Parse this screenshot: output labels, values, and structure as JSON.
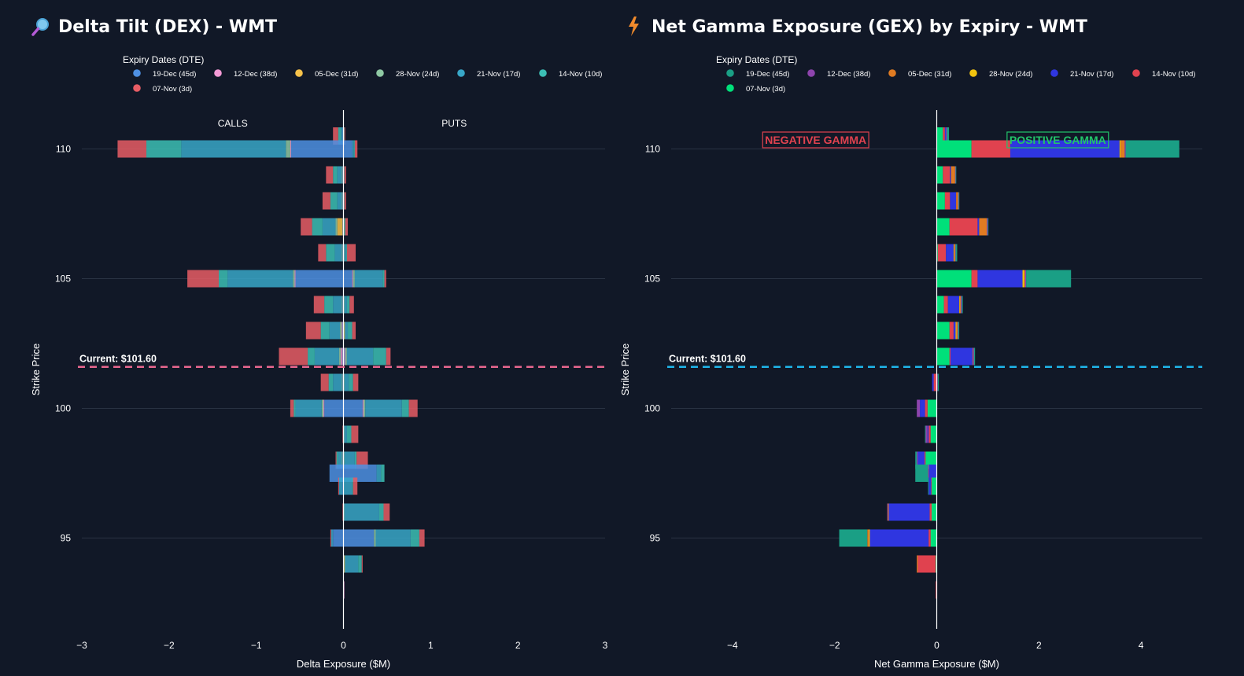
{
  "colors": {
    "background": "#111827",
    "grid": "#2a3343",
    "dex_current_line": "#e8678f",
    "gex_current_line": "#1fb6ea",
    "negative_gamma": "#e0424f",
    "positive_gamma": "#22c46a"
  },
  "charts": [
    {
      "key": "dex",
      "icon": "magnifier-icon",
      "title": "Delta Tilt (DEX) - WMT",
      "legend_title": "Expiry Dates (DTE)",
      "xlabel": "Delta Exposure ($M)",
      "ylabel": "Strike Price",
      "current_label": "Current: $101.60",
      "side_labels": [
        "CALLS",
        "PUTS"
      ],
      "legend": [
        {
          "name": "19-Dec (45d)",
          "color": "#4e90e3"
        },
        {
          "name": "12-Dec (38d)",
          "color": "#f49ad6"
        },
        {
          "name": "05-Dec (31d)",
          "color": "#f7c24a"
        },
        {
          "name": "28-Nov (24d)",
          "color": "#8fc9a4"
        },
        {
          "name": "21-Nov (17d)",
          "color": "#38a7c8"
        },
        {
          "name": "14-Nov (10d)",
          "color": "#3cbfb5"
        },
        {
          "name": "07-Nov (3d)",
          "color": "#e85d65"
        }
      ]
    },
    {
      "key": "gex",
      "icon": "lightning-icon",
      "title": "Net Gamma Exposure (GEX) by Expiry - WMT",
      "legend_title": "Expiry Dates (DTE)",
      "xlabel": "Net Gamma Exposure ($M)",
      "ylabel": "Strike Price",
      "current_label": "Current: $101.60",
      "neg_label": "NEGATIVE GAMMA",
      "pos_label": "POSITIVE GAMMA",
      "legend": [
        {
          "name": "19-Dec (45d)",
          "color": "#1a9f85"
        },
        {
          "name": "12-Dec (38d)",
          "color": "#8e44ad"
        },
        {
          "name": "05-Dec (31d)",
          "color": "#e07b22"
        },
        {
          "name": "28-Nov (24d)",
          "color": "#f1c40f"
        },
        {
          "name": "21-Nov (17d)",
          "color": "#2f36e0"
        },
        {
          "name": "14-Nov (10d)",
          "color": "#e0424f"
        },
        {
          "name": "07-Nov (3d)",
          "color": "#00e07a"
        }
      ]
    }
  ],
  "chart_data": [
    {
      "type": "bar",
      "orientation": "horizontal",
      "stacked": true,
      "title": "Delta Tilt (DEX) - WMT",
      "xlabel": "Delta Exposure ($M)",
      "ylabel": "Strike Price",
      "xlim": [
        -3,
        3
      ],
      "ylim": [
        91.5,
        111.5
      ],
      "x_ticks": [
        -3,
        -2,
        -1,
        0,
        1,
        2,
        3
      ],
      "x_tick_labels": [
        "−3",
        "−2",
        "−1",
        "0",
        "1",
        "2",
        "3"
      ],
      "y_ticks": [
        95,
        100,
        105,
        110
      ],
      "y_tick_labels": [
        "95",
        "100",
        "105",
        "110"
      ],
      "current_price": 101.6,
      "strikes": [
        110.5,
        110,
        109,
        108,
        107,
        106,
        105,
        104,
        103,
        102,
        101,
        100,
        99,
        98,
        97.5,
        97,
        96,
        95,
        94,
        93
      ],
      "series": [
        {
          "name": "19-Dec (45d)",
          "neg": [
            -0.01,
            -0.6,
            -0.01,
            -0.01,
            -0.01,
            -0.01,
            -0.55,
            -0.01,
            -0.01,
            -0.01,
            -0.01,
            -0.22,
            0,
            -0.01,
            -0.16,
            -0.01,
            0,
            -0.12,
            0,
            0
          ],
          "pos": [
            0,
            0.1,
            0,
            0,
            0,
            0,
            0.1,
            0,
            0,
            0.01,
            0,
            0.22,
            0,
            0,
            0.38,
            0,
            0,
            0.35,
            0,
            0
          ]
        },
        {
          "name": "12-Dec (38d)",
          "neg": [
            0,
            -0.01,
            0,
            0,
            0,
            0,
            -0.01,
            0,
            -0.01,
            -0.02,
            0,
            -0.01,
            0,
            0,
            0,
            0,
            0,
            0,
            0,
            0
          ],
          "pos": [
            0,
            0,
            0,
            0,
            0,
            0,
            0.01,
            0,
            0,
            0.01,
            0,
            0.01,
            0,
            0,
            0,
            0,
            0,
            0,
            0,
            0.01
          ]
        },
        {
          "name": "05-Dec (31d)",
          "neg": [
            0,
            0,
            0,
            0,
            -0.06,
            0,
            0,
            0,
            0,
            0,
            0,
            0,
            0,
            0,
            0,
            0,
            0,
            0,
            0,
            0
          ],
          "pos": [
            0,
            0,
            0,
            0,
            0,
            0,
            0,
            0,
            0.01,
            0,
            0,
            0,
            0,
            0,
            0,
            0,
            0,
            0,
            0.01,
            0
          ]
        },
        {
          "name": "28-Nov (24d)",
          "neg": [
            0,
            -0.05,
            -0.01,
            -0.01,
            -0.02,
            -0.01,
            -0.02,
            -0.01,
            -0.02,
            -0.02,
            -0.01,
            -0.02,
            0,
            -0.01,
            0,
            0,
            0,
            0,
            0,
            0
          ],
          "pos": [
            0,
            0,
            0,
            0,
            0.01,
            0.01,
            0.02,
            0.01,
            0.01,
            0.02,
            0.01,
            0.02,
            0.01,
            0.01,
            0,
            0,
            0.01,
            0.02,
            0.01,
            0
          ]
        },
        {
          "name": "21-Nov (17d)",
          "neg": [
            -0.02,
            -1.2,
            -0.05,
            -0.05,
            -0.15,
            -0.08,
            -0.75,
            -0.1,
            -0.12,
            -0.28,
            -0.1,
            -0.3,
            0,
            -0.04,
            0,
            -0.04,
            0,
            -0.02,
            0,
            0
          ],
          "pos": [
            0,
            0.02,
            0,
            0,
            0,
            0.02,
            0.32,
            0.03,
            0.03,
            0.3,
            0.05,
            0.42,
            0.03,
            0.12,
            0.05,
            0.1,
            0.4,
            0.4,
            0.15,
            0
          ]
        },
        {
          "name": "14-Nov (10d)",
          "neg": [
            -0.03,
            -0.4,
            -0.05,
            -0.08,
            -0.12,
            -0.1,
            -0.1,
            -0.1,
            -0.1,
            -0.08,
            -0.05,
            -0.02,
            0,
            -0.02,
            0,
            0,
            0,
            0,
            0,
            0
          ],
          "pos": [
            0.01,
            0.01,
            0.01,
            0.01,
            0.01,
            0.01,
            0.02,
            0.03,
            0.05,
            0.15,
            0.05,
            0.08,
            0.05,
            0.02,
            0.04,
            0.01,
            0.05,
            0.1,
            0.04,
            0
          ]
        },
        {
          "name": "07-Nov (3d)",
          "neg": [
            -0.06,
            -0.33,
            -0.08,
            -0.09,
            -0.13,
            -0.09,
            -0.36,
            -0.12,
            -0.17,
            -0.33,
            -0.09,
            -0.04,
            -0.01,
            -0.01,
            0,
            -0.01,
            -0.01,
            -0.01,
            0,
            0
          ],
          "pos": [
            0.01,
            0.03,
            0.02,
            0.02,
            0.03,
            0.1,
            0.02,
            0.05,
            0.04,
            0.05,
            0.06,
            0.1,
            0.08,
            0.13,
            0,
            0.05,
            0.07,
            0.06,
            0.01,
            0
          ]
        }
      ]
    },
    {
      "type": "bar",
      "orientation": "horizontal",
      "stacked": true,
      "title": "Net Gamma Exposure (GEX) by Expiry - WMT",
      "xlabel": "Net Gamma Exposure ($M)",
      "ylabel": "Strike Price",
      "xlim": [
        -5.2,
        5.2
      ],
      "ylim": [
        91.5,
        111.5
      ],
      "x_ticks": [
        -4,
        -2,
        0,
        2,
        4
      ],
      "x_tick_labels": [
        "−4",
        "−2",
        "0",
        "2",
        "4"
      ],
      "y_ticks": [
        95,
        100,
        105,
        110
      ],
      "y_tick_labels": [
        "95",
        "100",
        "105",
        "110"
      ],
      "current_price": 101.6,
      "strikes": [
        110.5,
        110,
        109,
        108,
        107,
        106,
        105,
        104,
        103,
        102,
        101,
        100,
        99,
        98,
        97.5,
        97,
        96,
        95,
        94,
        93
      ],
      "order": [
        "07-Nov (3d)",
        "14-Nov (10d)",
        "21-Nov (17d)",
        "28-Nov (24d)",
        "05-Dec (31d)",
        "12-Dec (38d)",
        "19-Dec (45d)"
      ],
      "series": [
        {
          "name": "07-Nov (3d)",
          "values": [
            0.12,
            0.68,
            0.12,
            0.16,
            0.25,
            0.02,
            0.68,
            0.14,
            0.25,
            0.25,
            0,
            -0.18,
            -0.12,
            -0.22,
            0,
            -0.1,
            -0.1,
            -0.12,
            -0.02,
            0
          ]
        },
        {
          "name": "14-Nov (10d)",
          "values": [
            0.04,
            0.76,
            0.14,
            0.1,
            0.55,
            0.16,
            0.12,
            0.08,
            0.08,
            0.02,
            -0.06,
            -0.05,
            -0.04,
            -0.02,
            0,
            -0.01,
            -0.04,
            -0.04,
            -0.35,
            -0.02
          ]
        },
        {
          "name": "21-Nov (17d)",
          "values": [
            0.02,
            2.14,
            0.02,
            0.12,
            0.03,
            0.15,
            0.88,
            0.22,
            0.04,
            0.43,
            -0.03,
            -0.1,
            -0.02,
            -0.13,
            -0.15,
            -0.05,
            -0.8,
            -1.15,
            0,
            0
          ]
        },
        {
          "name": "28-Nov (24d)",
          "values": [
            0,
            0.02,
            0,
            0,
            0,
            0.01,
            0.03,
            0.01,
            0.02,
            0,
            0,
            0,
            0,
            0,
            0,
            0,
            0,
            -0.02,
            0,
            0
          ]
        },
        {
          "name": "05-Dec (31d)",
          "values": [
            0,
            0.08,
            0.08,
            0.04,
            0.15,
            0.02,
            0.02,
            0.02,
            0.02,
            0.01,
            0,
            0,
            0,
            0,
            0,
            0,
            -0.02,
            -0.03,
            -0.02,
            0
          ]
        },
        {
          "name": "12-Dec (38d)",
          "values": [
            0.02,
            0.02,
            0.01,
            0.01,
            0.02,
            0.01,
            0.02,
            0.02,
            0.01,
            0.02,
            0.02,
            -0.06,
            -0.04,
            -0.02,
            -0.02,
            0,
            -0.01,
            0,
            0,
            0
          ]
        },
        {
          "name": "19-Dec (45d)",
          "values": [
            0.04,
            1.05,
            0.01,
            0.01,
            0.01,
            0.03,
            0.88,
            0.02,
            0.02,
            0.02,
            0.02,
            0,
            -0.01,
            -0.03,
            -0.25,
            -0.01,
            0,
            -0.55,
            0,
            0
          ]
        }
      ]
    }
  ]
}
